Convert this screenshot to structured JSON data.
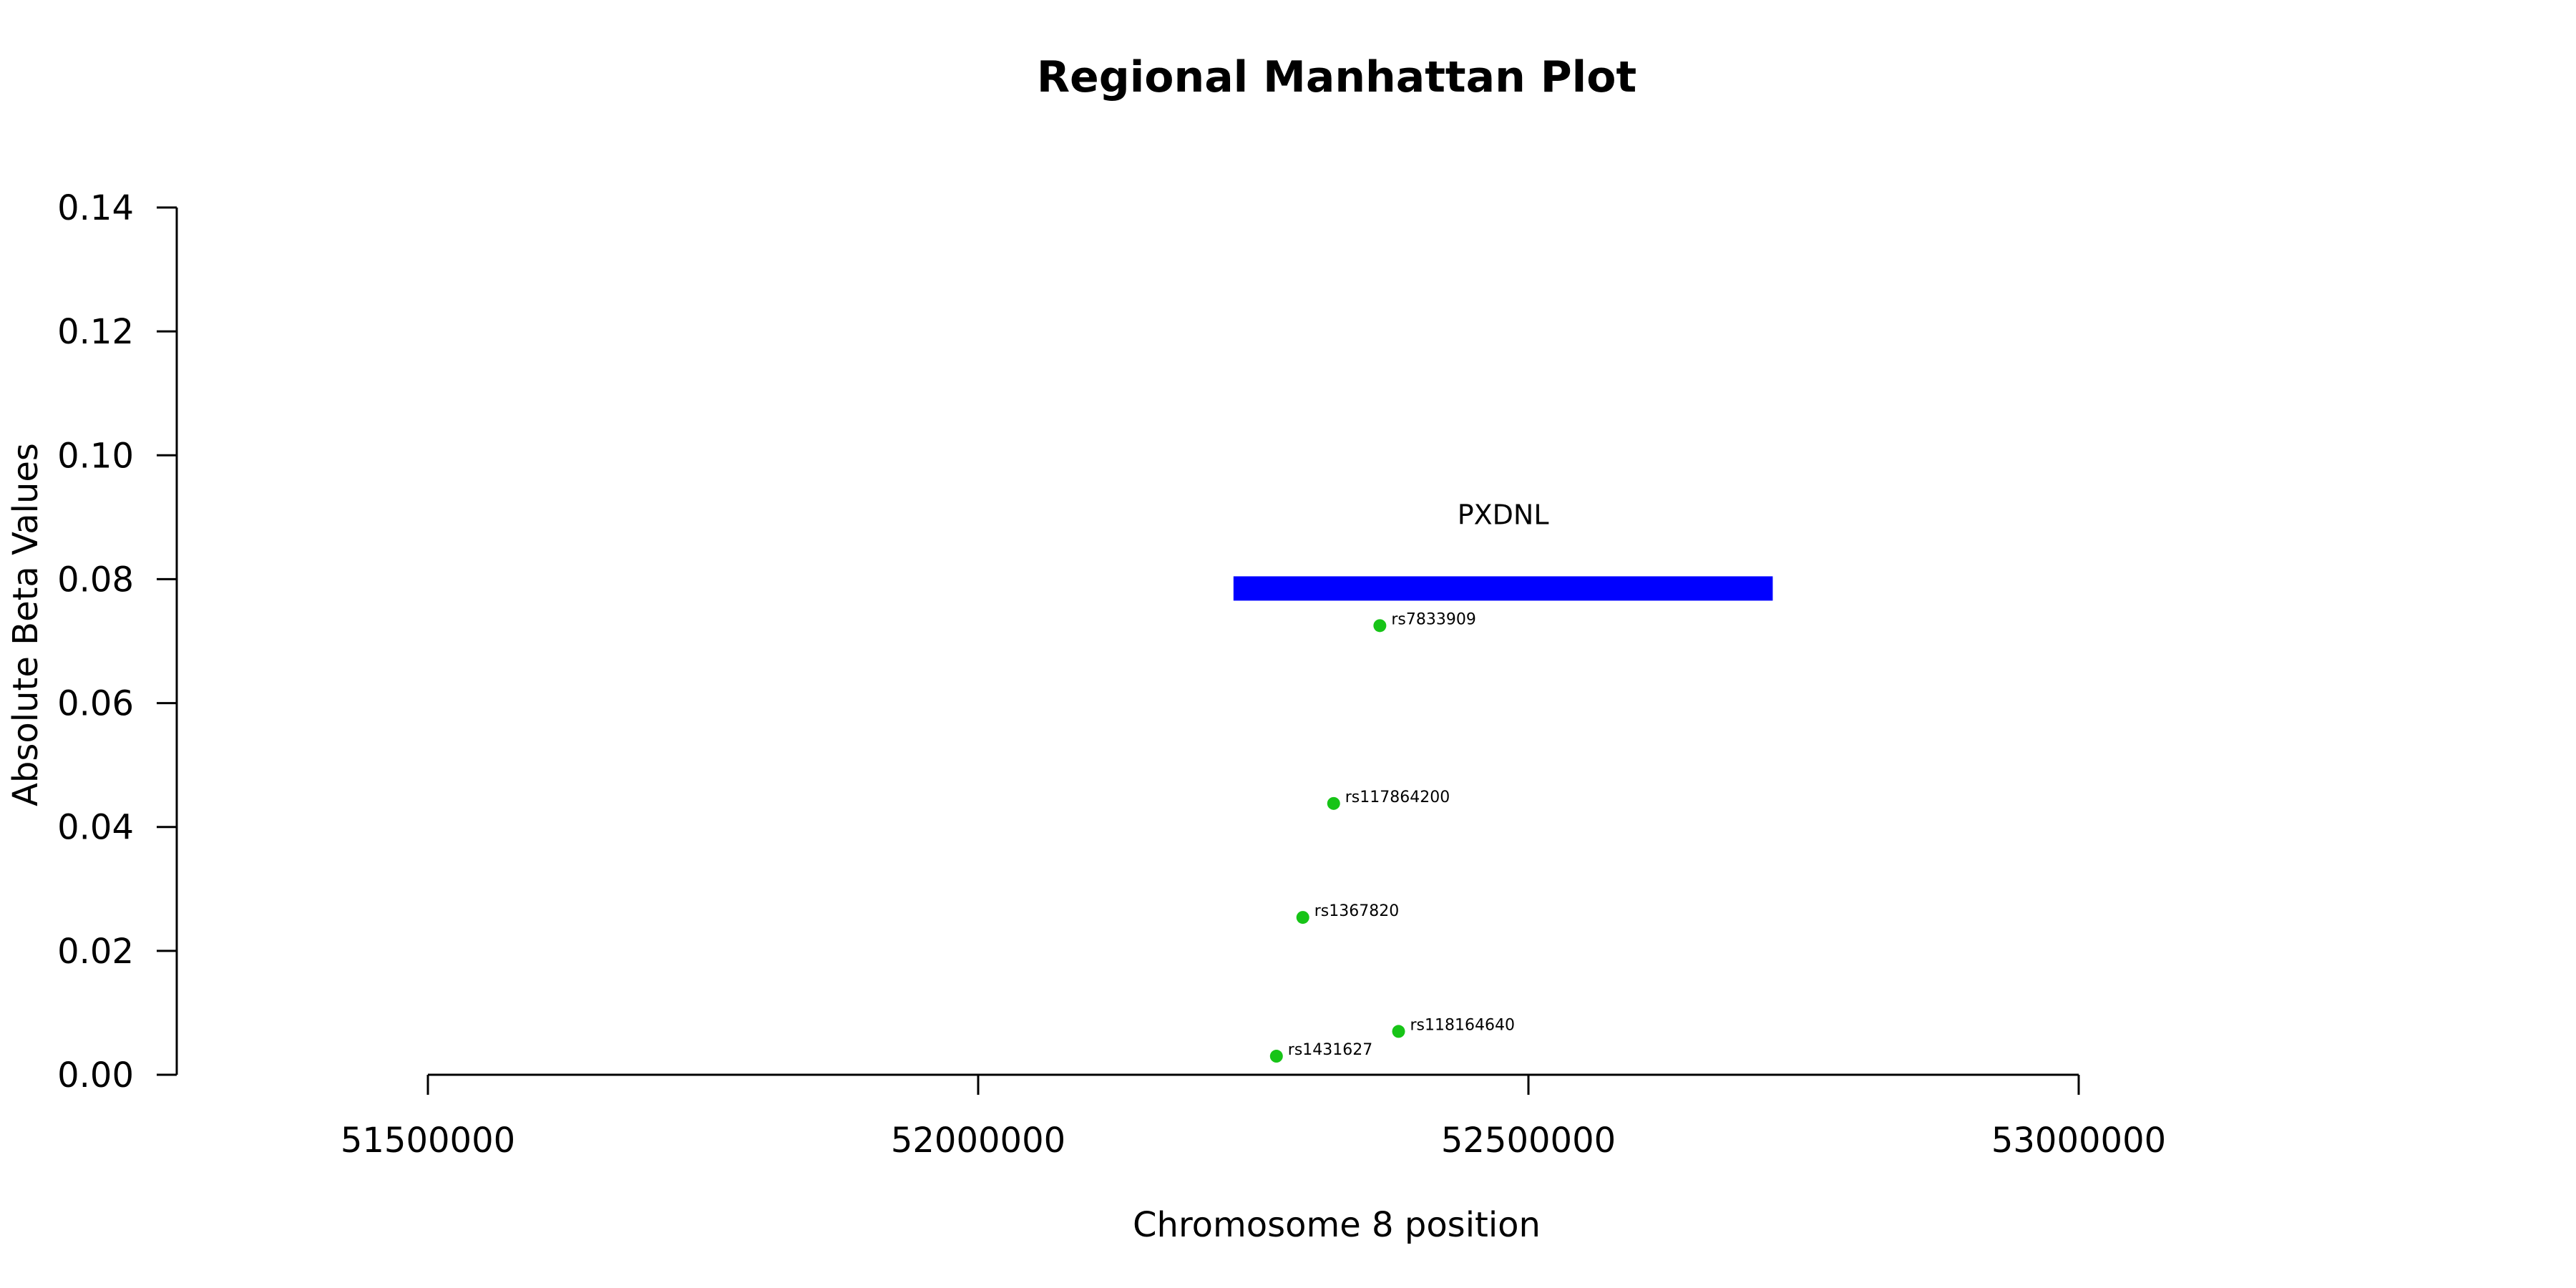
{
  "chart_data": {
    "type": "scatter",
    "title": "Regional Manhattan Plot",
    "xlabel": "Chromosome 8 position",
    "ylabel": "Absolute Beta Values",
    "xlim": [
      51500000,
      53000000
    ],
    "ylim": [
      0.0,
      0.14
    ],
    "x_ticks": [
      51500000,
      52000000,
      52500000,
      53000000
    ],
    "x_tick_labels": [
      "51500000",
      "52000000",
      "52500000",
      "53000000"
    ],
    "y_ticks": [
      0.0,
      0.02,
      0.04,
      0.06,
      0.08,
      0.1,
      0.12,
      0.14
    ],
    "y_tick_labels": [
      "0.00",
      "0.02",
      "0.04",
      "0.06",
      "0.08",
      "0.10",
      "0.12",
      "0.14"
    ],
    "grid": false,
    "point_color": "#17c417",
    "points": [
      {
        "label": "rs7833909",
        "x": 52365000,
        "y": 0.0725
      },
      {
        "label": "rs117864200",
        "x": 52323000,
        "y": 0.0438
      },
      {
        "label": "rs1367820",
        "x": 52295000,
        "y": 0.0254
      },
      {
        "label": "rs118164640",
        "x": 52382000,
        "y": 0.007
      },
      {
        "label": "rs1431627",
        "x": 52271000,
        "y": 0.003
      }
    ],
    "genes": [
      {
        "name": "PXDNL",
        "start": 52232000,
        "end": 52722000,
        "y": 0.0785,
        "color": "#0000ff"
      }
    ]
  }
}
